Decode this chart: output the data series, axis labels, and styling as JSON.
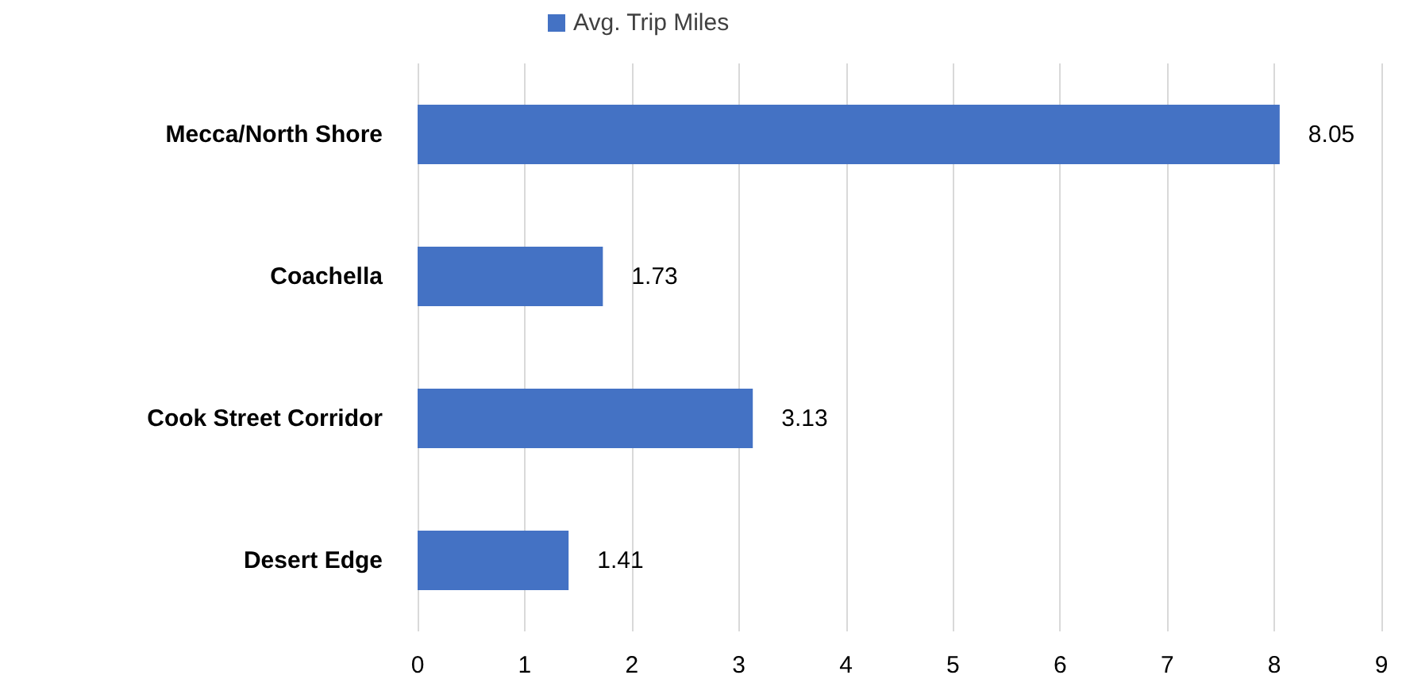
{
  "chart_data": {
    "type": "bar",
    "orientation": "horizontal",
    "categories": [
      "Mecca/North Shore",
      "Coachella",
      "Cook Street Corridor",
      "Desert Edge"
    ],
    "series": [
      {
        "name": "Avg. Trip Miles",
        "color": "#4472c4",
        "values": [
          8.05,
          1.73,
          3.13,
          1.41
        ]
      }
    ],
    "xlim": [
      0,
      9
    ],
    "xticks": [
      0,
      1,
      2,
      3,
      4,
      5,
      6,
      7,
      8,
      9
    ],
    "grid": "x",
    "legend": "top",
    "data_labels": true
  }
}
